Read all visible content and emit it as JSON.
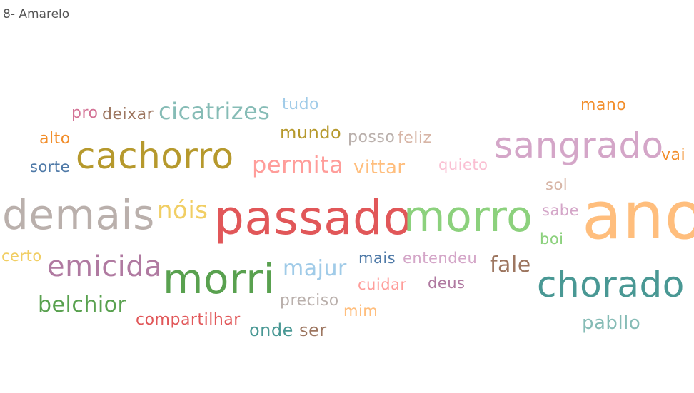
{
  "title": "8- Amarelo",
  "chart_data": {
    "type": "wordcloud",
    "words": [
      {
        "text": "ano",
        "color": "#ffbe7d"
      },
      {
        "text": "passado",
        "color": "#e15759"
      },
      {
        "text": "morro",
        "color": "#8cd17d"
      },
      {
        "text": "demais",
        "color": "#bab0ac"
      },
      {
        "text": "morri",
        "color": "#59a14f"
      },
      {
        "text": "chorado",
        "color": "#499894"
      },
      {
        "text": "sangrado",
        "color": "#d4a6c8"
      },
      {
        "text": "cachorro",
        "color": "#b6992d"
      },
      {
        "text": "emicida",
        "color": "#b07aa1"
      },
      {
        "text": "cicatrizes",
        "color": "#86bcb6"
      },
      {
        "text": "nóis",
        "color": "#f1ce63"
      },
      {
        "text": "permita",
        "color": "#ff9d9a"
      },
      {
        "text": "belchior",
        "color": "#59a14f"
      },
      {
        "text": "majur",
        "color": "#a0cbe8"
      },
      {
        "text": "fale",
        "color": "#9d7660"
      },
      {
        "text": "vittar",
        "color": "#ffbe7d"
      },
      {
        "text": "pabllo",
        "color": "#86bcb6"
      },
      {
        "text": "compartilhar",
        "color": "#e15759"
      },
      {
        "text": "mundo",
        "color": "#b6992d"
      },
      {
        "text": "posso",
        "color": "#bab0ac"
      },
      {
        "text": "feliz",
        "color": "#d7b5a6"
      },
      {
        "text": "deixar",
        "color": "#9d7660"
      },
      {
        "text": "pro",
        "color": "#d37295"
      },
      {
        "text": "tudo",
        "color": "#a0cbe8"
      },
      {
        "text": "mano",
        "color": "#f28e2b"
      },
      {
        "text": "vai",
        "color": "#f28e2b"
      },
      {
        "text": "alto",
        "color": "#f28e2b"
      },
      {
        "text": "sorte",
        "color": "#4e79a7"
      },
      {
        "text": "quieto",
        "color": "#fabfd2"
      },
      {
        "text": "sol",
        "color": "#d7b5a6"
      },
      {
        "text": "sabe",
        "color": "#d4a6c8"
      },
      {
        "text": "boi",
        "color": "#8cd17d"
      },
      {
        "text": "certo",
        "color": "#f1ce63"
      },
      {
        "text": "mais",
        "color": "#4e79a7"
      },
      {
        "text": "entendeu",
        "color": "#d4a6c8"
      },
      {
        "text": "cuidar",
        "color": "#ff9d9a"
      },
      {
        "text": "deus",
        "color": "#b07aa1"
      },
      {
        "text": "preciso",
        "color": "#bab0ac"
      },
      {
        "text": "mim",
        "color": "#ffbe7d"
      },
      {
        "text": "onde",
        "color": "#499894"
      },
      {
        "text": "ser",
        "color": "#9d7660"
      }
    ]
  }
}
